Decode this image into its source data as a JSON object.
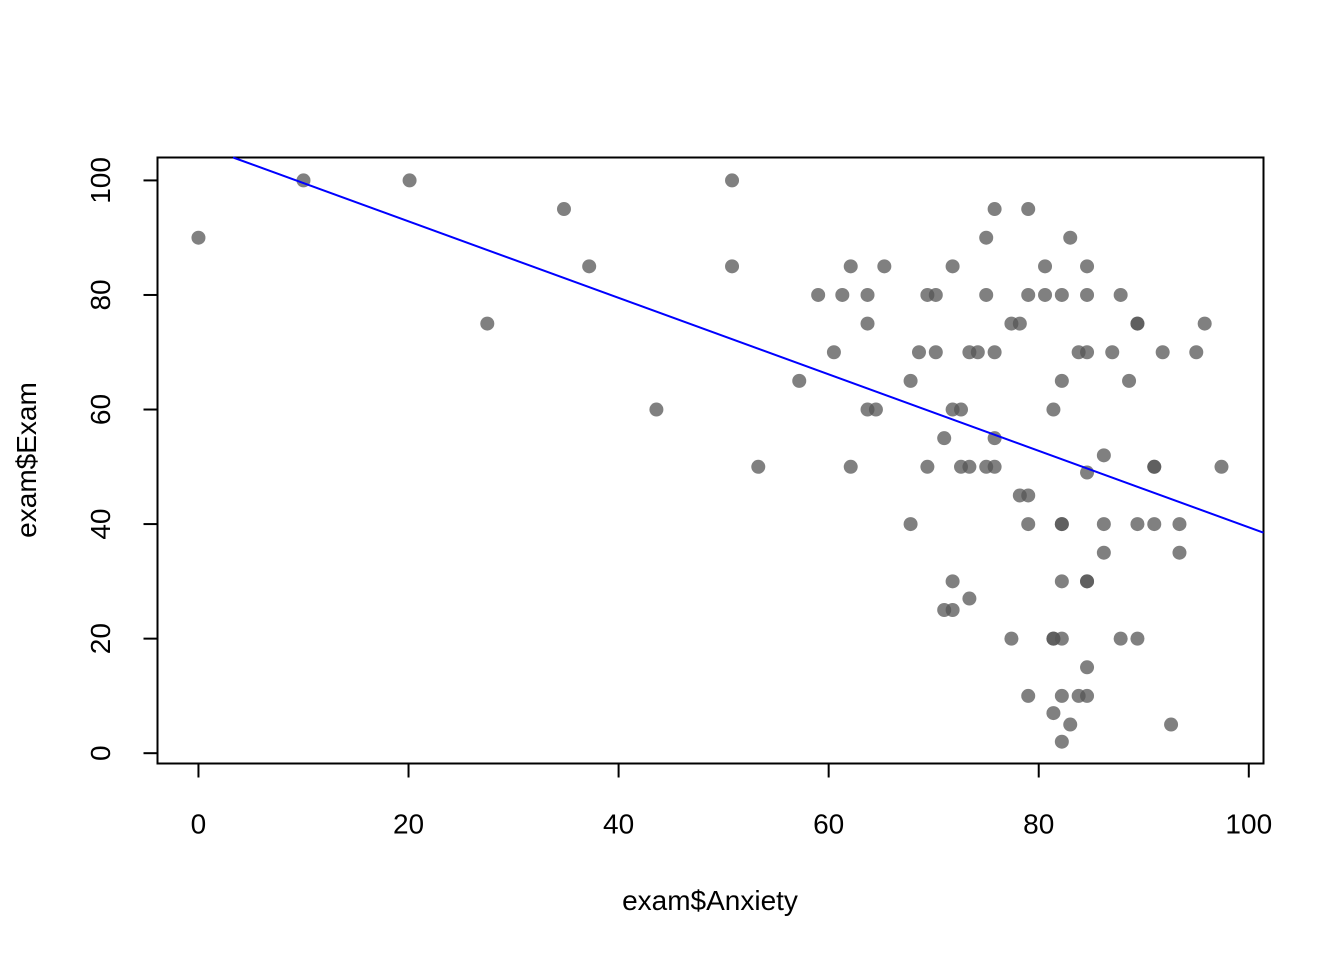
{
  "chart_data": {
    "type": "scatter",
    "title": "",
    "xlabel": "exam$Anxiety",
    "ylabel": "exam$Exam",
    "xlim": [
      -3.9,
      101.4
    ],
    "ylim": [
      -1.8,
      104
    ],
    "xticks": [
      "0",
      "20",
      "40",
      "60",
      "80",
      "100"
    ],
    "yticks": [
      "0",
      "20",
      "40",
      "60",
      "80",
      "100"
    ],
    "grid": false,
    "point_color": "#555555",
    "line_color": "#0000ff",
    "regression_line": {
      "x": [
        3.3,
        101.4
      ],
      "y": [
        104.0,
        38.5
      ]
    },
    "points": [
      {
        "x": 0.0,
        "y": 90
      },
      {
        "x": 10.0,
        "y": 100
      },
      {
        "x": 20.1,
        "y": 100
      },
      {
        "x": 27.5,
        "y": 75
      },
      {
        "x": 34.8,
        "y": 95
      },
      {
        "x": 37.2,
        "y": 85
      },
      {
        "x": 43.6,
        "y": 60
      },
      {
        "x": 50.8,
        "y": 100
      },
      {
        "x": 50.8,
        "y": 85
      },
      {
        "x": 53.3,
        "y": 50
      },
      {
        "x": 57.2,
        "y": 65
      },
      {
        "x": 59.0,
        "y": 80
      },
      {
        "x": 60.5,
        "y": 70
      },
      {
        "x": 61.3,
        "y": 80
      },
      {
        "x": 62.1,
        "y": 85
      },
      {
        "x": 62.1,
        "y": 50
      },
      {
        "x": 63.7,
        "y": 80
      },
      {
        "x": 63.7,
        "y": 75
      },
      {
        "x": 63.7,
        "y": 60
      },
      {
        "x": 64.5,
        "y": 60
      },
      {
        "x": 65.3,
        "y": 85
      },
      {
        "x": 67.8,
        "y": 65
      },
      {
        "x": 67.8,
        "y": 40
      },
      {
        "x": 68.6,
        "y": 70
      },
      {
        "x": 69.4,
        "y": 80
      },
      {
        "x": 69.4,
        "y": 50
      },
      {
        "x": 70.2,
        "y": 80
      },
      {
        "x": 70.2,
        "y": 70
      },
      {
        "x": 71.0,
        "y": 55
      },
      {
        "x": 71.0,
        "y": 25
      },
      {
        "x": 71.8,
        "y": 85
      },
      {
        "x": 71.8,
        "y": 60
      },
      {
        "x": 71.8,
        "y": 30
      },
      {
        "x": 71.8,
        "y": 25
      },
      {
        "x": 72.6,
        "y": 60
      },
      {
        "x": 72.6,
        "y": 50
      },
      {
        "x": 73.4,
        "y": 70
      },
      {
        "x": 73.4,
        "y": 50
      },
      {
        "x": 73.4,
        "y": 27
      },
      {
        "x": 74.2,
        "y": 70
      },
      {
        "x": 75.0,
        "y": 90
      },
      {
        "x": 75.0,
        "y": 80
      },
      {
        "x": 75.0,
        "y": 50
      },
      {
        "x": 75.8,
        "y": 95
      },
      {
        "x": 75.8,
        "y": 70
      },
      {
        "x": 75.8,
        "y": 55
      },
      {
        "x": 75.8,
        "y": 50
      },
      {
        "x": 77.4,
        "y": 75
      },
      {
        "x": 77.4,
        "y": 20
      },
      {
        "x": 78.2,
        "y": 75
      },
      {
        "x": 78.2,
        "y": 45
      },
      {
        "x": 79.0,
        "y": 95
      },
      {
        "x": 79.0,
        "y": 80
      },
      {
        "x": 79.0,
        "y": 45
      },
      {
        "x": 79.0,
        "y": 40
      },
      {
        "x": 79.0,
        "y": 10
      },
      {
        "x": 80.6,
        "y": 85
      },
      {
        "x": 80.6,
        "y": 80
      },
      {
        "x": 81.4,
        "y": 60
      },
      {
        "x": 81.4,
        "y": 20
      },
      {
        "x": 81.4,
        "y": 20
      },
      {
        "x": 81.4,
        "y": 7
      },
      {
        "x": 82.2,
        "y": 80
      },
      {
        "x": 82.2,
        "y": 65
      },
      {
        "x": 82.2,
        "y": 40
      },
      {
        "x": 82.2,
        "y": 40
      },
      {
        "x": 82.2,
        "y": 30
      },
      {
        "x": 82.2,
        "y": 20
      },
      {
        "x": 82.2,
        "y": 10
      },
      {
        "x": 82.2,
        "y": 2
      },
      {
        "x": 83.0,
        "y": 90
      },
      {
        "x": 83.0,
        "y": 5
      },
      {
        "x": 83.8,
        "y": 70
      },
      {
        "x": 83.8,
        "y": 10
      },
      {
        "x": 84.6,
        "y": 85
      },
      {
        "x": 84.6,
        "y": 80
      },
      {
        "x": 84.6,
        "y": 70
      },
      {
        "x": 84.6,
        "y": 49
      },
      {
        "x": 84.6,
        "y": 30
      },
      {
        "x": 84.6,
        "y": 30
      },
      {
        "x": 84.6,
        "y": 15
      },
      {
        "x": 84.6,
        "y": 10
      },
      {
        "x": 86.2,
        "y": 52
      },
      {
        "x": 86.2,
        "y": 40
      },
      {
        "x": 86.2,
        "y": 35
      },
      {
        "x": 87.0,
        "y": 70
      },
      {
        "x": 87.8,
        "y": 80
      },
      {
        "x": 87.8,
        "y": 20
      },
      {
        "x": 88.6,
        "y": 65
      },
      {
        "x": 89.4,
        "y": 75
      },
      {
        "x": 89.4,
        "y": 75
      },
      {
        "x": 89.4,
        "y": 40
      },
      {
        "x": 89.4,
        "y": 20
      },
      {
        "x": 91.0,
        "y": 50
      },
      {
        "x": 91.0,
        "y": 50
      },
      {
        "x": 91.0,
        "y": 40
      },
      {
        "x": 91.8,
        "y": 70
      },
      {
        "x": 92.6,
        "y": 5
      },
      {
        "x": 93.4,
        "y": 40
      },
      {
        "x": 93.4,
        "y": 35
      },
      {
        "x": 95.0,
        "y": 70
      },
      {
        "x": 95.8,
        "y": 75
      },
      {
        "x": 97.4,
        "y": 50
      }
    ]
  }
}
